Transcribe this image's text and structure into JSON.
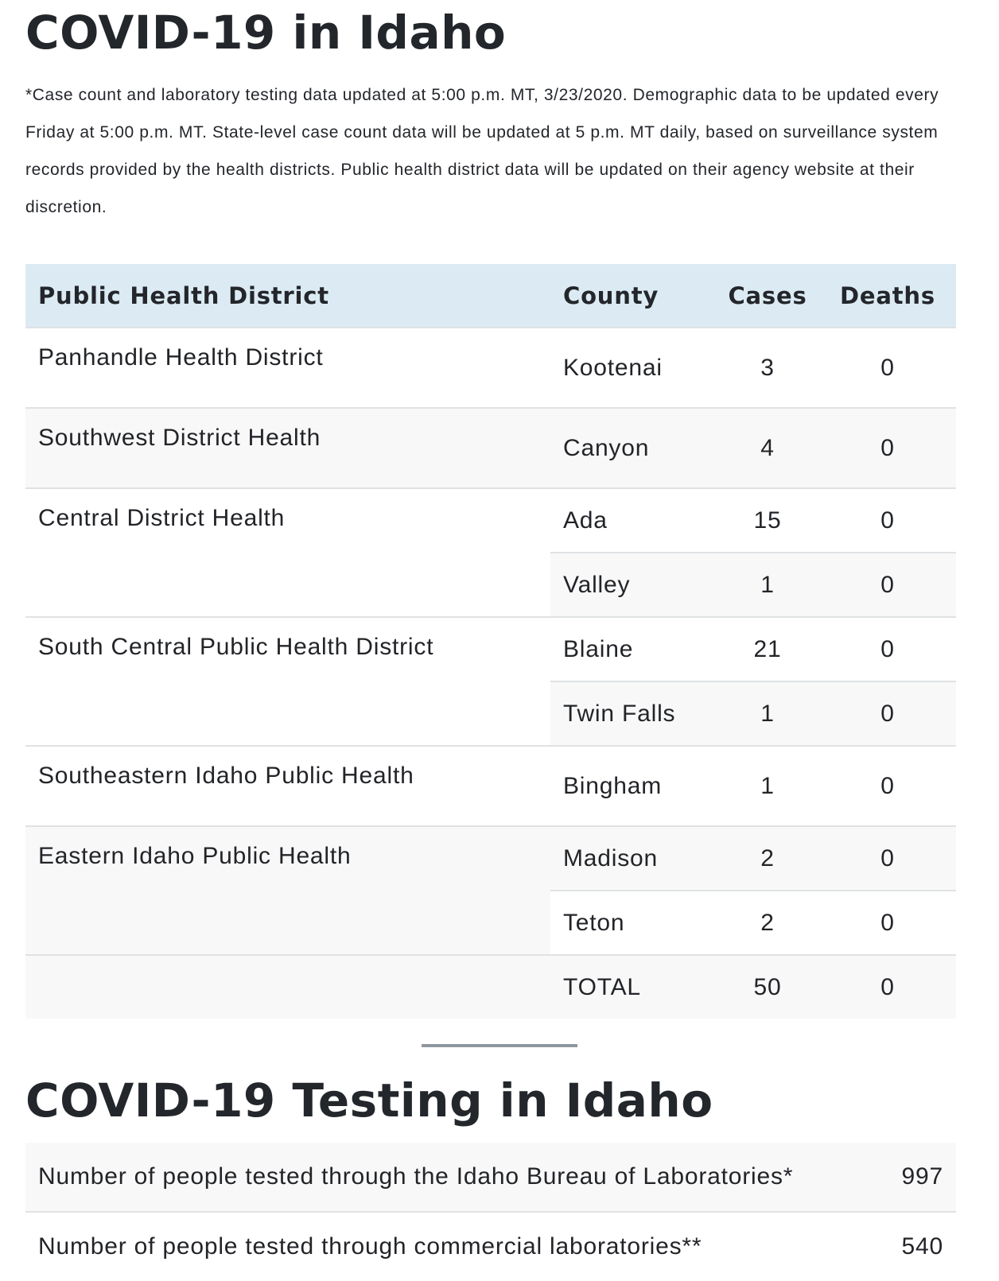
{
  "section1": {
    "title": "COVID-19 in Idaho",
    "note": "*Case count and laboratory testing data updated at 5:00 p.m. MT, 3/23/2020. Demographic data to be updated every Friday at 5:00 p.m. MT. State-level case count data will be updated at 5 p.m. MT daily, based on surveillance system records provided by the health districts. Public health district data will be updated on their agency website at their discretion."
  },
  "cases_table": {
    "headers": {
      "district": "Public Health District",
      "county": "County",
      "cases": "Cases",
      "deaths": "Deaths"
    },
    "rows": [
      {
        "district": "Panhandle Health District",
        "county": "Kootenai",
        "cases": "3",
        "deaths": "0"
      },
      {
        "district": "Southwest District Health",
        "county": "Canyon",
        "cases": "4",
        "deaths": "0"
      },
      {
        "district": "Central District Health",
        "county": "Ada",
        "cases": "15",
        "deaths": "0"
      },
      {
        "district": "",
        "county": "Valley",
        "cases": "1",
        "deaths": "0"
      },
      {
        "district": "South Central Public Health District",
        "county": "Blaine",
        "cases": "21",
        "deaths": "0"
      },
      {
        "district": "",
        "county": "Twin Falls",
        "cases": "1",
        "deaths": "0"
      },
      {
        "district": "Southeastern Idaho Public Health",
        "county": "Bingham",
        "cases": "1",
        "deaths": "0"
      },
      {
        "district": "Eastern Idaho Public Health",
        "county": "Madison",
        "cases": "2",
        "deaths": "0"
      },
      {
        "district": "",
        "county": "Teton",
        "cases": "2",
        "deaths": "0"
      }
    ],
    "total": {
      "label": "TOTAL",
      "cases": "50",
      "deaths": "0"
    }
  },
  "section2": {
    "title": "COVID-19 Testing in Idaho"
  },
  "testing_table": {
    "rows": [
      {
        "label": "Number of people tested through the Idaho Bureau of Laboratories*",
        "value": "997"
      },
      {
        "label": "Number of people tested through commercial laboratories**",
        "value": "540"
      }
    ]
  },
  "colors": {
    "header_bg": "#dcebf3",
    "stripe_bg": "#f8f8f8",
    "text": "#23262b",
    "divider": "#8e969e"
  }
}
